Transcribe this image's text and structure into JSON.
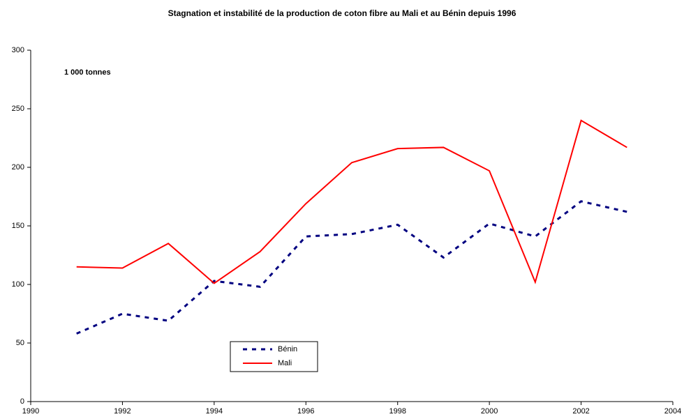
{
  "chart_data": {
    "type": "line",
    "title": "Stagnation et instabilité de la production de coton fibre au Mali et au Bénin depuis 1996",
    "annotation": "1 000 tonnes",
    "x": [
      1991,
      1992,
      1993,
      1994,
      1995,
      1996,
      1997,
      1998,
      1999,
      2000,
      2001,
      2002,
      2003
    ],
    "series": [
      {
        "name": "Bénin",
        "color": "#000080",
        "dashed": true,
        "values": [
          58,
          75,
          69,
          103,
          98,
          141,
          143,
          151,
          123,
          152,
          141,
          171,
          162
        ]
      },
      {
        "name": "Mali",
        "color": "#ff0000",
        "dashed": false,
        "values": [
          115,
          114,
          135,
          101,
          128,
          169,
          204,
          216,
          217,
          197,
          102,
          240,
          217
        ]
      }
    ],
    "xlim": [
      1990,
      2004
    ],
    "xticks": [
      1990,
      1992,
      1994,
      1996,
      1998,
      2000,
      2002,
      2004
    ],
    "ylim": [
      0,
      300
    ],
    "yticks": [
      0,
      50,
      100,
      150,
      200,
      250,
      300
    ],
    "grid": false
  }
}
